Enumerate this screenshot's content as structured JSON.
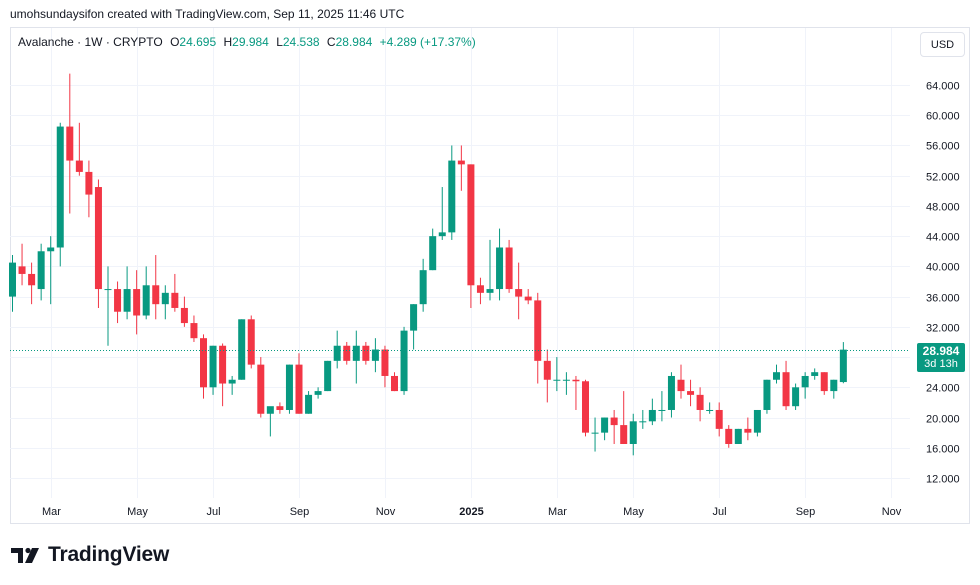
{
  "header": {
    "text": "umohsundaysifon created with TradingView.com, Sep 11, 2025 11:46 UTC"
  },
  "legend": {
    "symbol": "Avalanche · 1W · CRYPTO",
    "open_label": "O",
    "open": "24.695",
    "high_label": "H",
    "high": "29.984",
    "low_label": "L",
    "low": "24.538",
    "close_label": "C",
    "close": "28.984",
    "change": "+4.289 (+17.37%)"
  },
  "currency_button": "USD",
  "last_price": {
    "value": "28.984",
    "countdown": "3d 13h"
  },
  "brand": {
    "name": "TradingView"
  },
  "colors": {
    "up": "#089981",
    "down": "#f23645",
    "grid": "#f0f3fa",
    "axis_text": "#131722"
  },
  "chart_data": {
    "type": "candlestick",
    "ylim": [
      9,
      67
    ],
    "y_ticks": [
      12,
      16,
      20,
      24,
      28,
      32,
      36,
      40,
      44,
      48,
      52,
      56,
      60,
      64
    ],
    "y_tick_labels": [
      "12.000",
      "16.000",
      "20.000",
      "24.000",
      "28.000",
      "32.000",
      "36.000",
      "40.000",
      "44.000",
      "48.000",
      "52.000",
      "56.000",
      "60.000",
      "64.000"
    ],
    "x_tick_labels": [
      {
        "label": "Mar",
        "index": 4
      },
      {
        "label": "May",
        "index": 13
      },
      {
        "label": "Jul",
        "index": 21
      },
      {
        "label": "Sep",
        "index": 30
      },
      {
        "label": "Nov",
        "index": 39
      },
      {
        "label": "2025",
        "index": 48
      },
      {
        "label": "Mar",
        "index": 57
      },
      {
        "label": "May",
        "index": 65
      },
      {
        "label": "Jul",
        "index": 74
      },
      {
        "label": "Sep",
        "index": 83
      },
      {
        "label": "Nov",
        "index": 92
      }
    ],
    "last_price": 28.984,
    "ohlc": [
      [
        36.0,
        41.5,
        34.0,
        40.5
      ],
      [
        40.0,
        43.0,
        37.5,
        39.0
      ],
      [
        39.0,
        40.5,
        35.0,
        37.5
      ],
      [
        37.0,
        43.0,
        35.5,
        42.0
      ],
      [
        42.0,
        44.0,
        35.0,
        42.5
      ],
      [
        42.5,
        59.0,
        40.0,
        58.5
      ],
      [
        58.5,
        65.5,
        47.0,
        54.0
      ],
      [
        54.0,
        59.0,
        52.0,
        52.5
      ],
      [
        52.5,
        54.0,
        46.5,
        49.5
      ],
      [
        50.5,
        51.5,
        34.5,
        37.0
      ],
      [
        37.0,
        40.0,
        29.5,
        37.0
      ],
      [
        37.0,
        38.0,
        32.5,
        34.0
      ],
      [
        34.0,
        40.0,
        33.0,
        37.0
      ],
      [
        37.0,
        39.5,
        31.0,
        33.5
      ],
      [
        33.5,
        40.0,
        33.0,
        37.5
      ],
      [
        37.5,
        41.5,
        33.0,
        35.0
      ],
      [
        35.0,
        37.5,
        33.0,
        36.5
      ],
      [
        36.5,
        39.0,
        34.0,
        34.5
      ],
      [
        34.5,
        36.0,
        32.0,
        32.5
      ],
      [
        32.5,
        33.5,
        30.0,
        30.5
      ],
      [
        30.5,
        31.0,
        22.5,
        24.0
      ],
      [
        24.0,
        29.5,
        23.0,
        29.5
      ],
      [
        29.5,
        29.8,
        21.5,
        24.5
      ],
      [
        24.5,
        25.5,
        23.0,
        25.0
      ],
      [
        25.0,
        33.0,
        25.0,
        33.0
      ],
      [
        33.0,
        33.5,
        26.5,
        27.0
      ],
      [
        27.0,
        28.0,
        20.0,
        20.5
      ],
      [
        20.5,
        21.0,
        17.5,
        21.5
      ],
      [
        21.5,
        22.0,
        20.5,
        21.0
      ],
      [
        21.0,
        27.0,
        20.5,
        27.0
      ],
      [
        27.0,
        28.5,
        20.5,
        20.5
      ],
      [
        20.5,
        23.5,
        20.5,
        23.0
      ],
      [
        23.0,
        24.0,
        22.5,
        23.5
      ],
      [
        23.5,
        27.5,
        23.5,
        27.5
      ],
      [
        27.5,
        31.5,
        26.5,
        29.5
      ],
      [
        29.5,
        30.0,
        27.0,
        27.5
      ],
      [
        27.5,
        31.5,
        24.5,
        29.5
      ],
      [
        29.5,
        30.0,
        27.0,
        27.5
      ],
      [
        27.5,
        30.5,
        26.0,
        29.0
      ],
      [
        29.0,
        29.5,
        24.0,
        25.5
      ],
      [
        25.5,
        26.0,
        23.5,
        23.5
      ],
      [
        23.5,
        32.0,
        23.0,
        31.5
      ],
      [
        31.5,
        35.0,
        29.0,
        35.0
      ],
      [
        35.0,
        41.0,
        34.0,
        39.5
      ],
      [
        39.5,
        45.0,
        39.5,
        44.0
      ],
      [
        44.0,
        50.5,
        43.5,
        44.5
      ],
      [
        44.5,
        56.0,
        43.5,
        54.0
      ],
      [
        54.0,
        56.0,
        50.0,
        53.5
      ],
      [
        53.5,
        53.5,
        34.5,
        37.5
      ],
      [
        37.5,
        38.5,
        35.0,
        36.5
      ],
      [
        36.5,
        43.5,
        35.5,
        37.0
      ],
      [
        37.0,
        45.0,
        35.5,
        42.5
      ],
      [
        42.5,
        43.5,
        36.5,
        37.0
      ],
      [
        37.0,
        40.5,
        33.0,
        36.0
      ],
      [
        36.0,
        37.0,
        35.0,
        35.5
      ],
      [
        35.5,
        36.5,
        24.5,
        27.5
      ],
      [
        27.5,
        29.0,
        22.0,
        25.0
      ],
      [
        25.0,
        28.0,
        23.5,
        25.0
      ],
      [
        25.0,
        26.0,
        23.0,
        25.0
      ],
      [
        25.0,
        25.5,
        21.0,
        24.8
      ],
      [
        24.8,
        25.0,
        17.5,
        18.0
      ],
      [
        18.0,
        20.0,
        15.5,
        18.0
      ],
      [
        18.0,
        20.0,
        17.0,
        20.0
      ],
      [
        20.0,
        21.0,
        16.5,
        19.0
      ],
      [
        19.0,
        23.5,
        16.5,
        16.5
      ],
      [
        16.5,
        20.5,
        15.0,
        19.5
      ],
      [
        19.5,
        21.0,
        18.5,
        19.5
      ],
      [
        19.5,
        22.5,
        19.0,
        21.0
      ],
      [
        21.0,
        23.5,
        19.5,
        21.0
      ],
      [
        21.0,
        26.0,
        20.0,
        25.5
      ],
      [
        25.0,
        27.0,
        22.5,
        23.5
      ],
      [
        23.5,
        25.0,
        21.5,
        23.0
      ],
      [
        23.0,
        24.0,
        19.5,
        21.0
      ],
      [
        21.0,
        22.0,
        20.5,
        21.0
      ],
      [
        21.0,
        22.0,
        17.5,
        18.5
      ],
      [
        18.5,
        19.0,
        16.0,
        16.5
      ],
      [
        16.5,
        18.5,
        16.5,
        18.5
      ],
      [
        18.5,
        20.0,
        17.0,
        18.0
      ],
      [
        18.0,
        21.0,
        17.5,
        21.0
      ],
      [
        21.0,
        25.0,
        20.5,
        25.0
      ],
      [
        25.0,
        27.0,
        24.5,
        26.0
      ],
      [
        26.0,
        27.5,
        21.0,
        21.5
      ],
      [
        21.5,
        24.5,
        21.0,
        24.0
      ],
      [
        24.0,
        26.0,
        22.5,
        25.5
      ],
      [
        25.5,
        26.5,
        25.0,
        26.0
      ],
      [
        26.0,
        26.0,
        23.0,
        23.5
      ],
      [
        23.5,
        25.0,
        22.5,
        25.0
      ],
      [
        24.695,
        29.984,
        24.538,
        28.984
      ]
    ]
  }
}
